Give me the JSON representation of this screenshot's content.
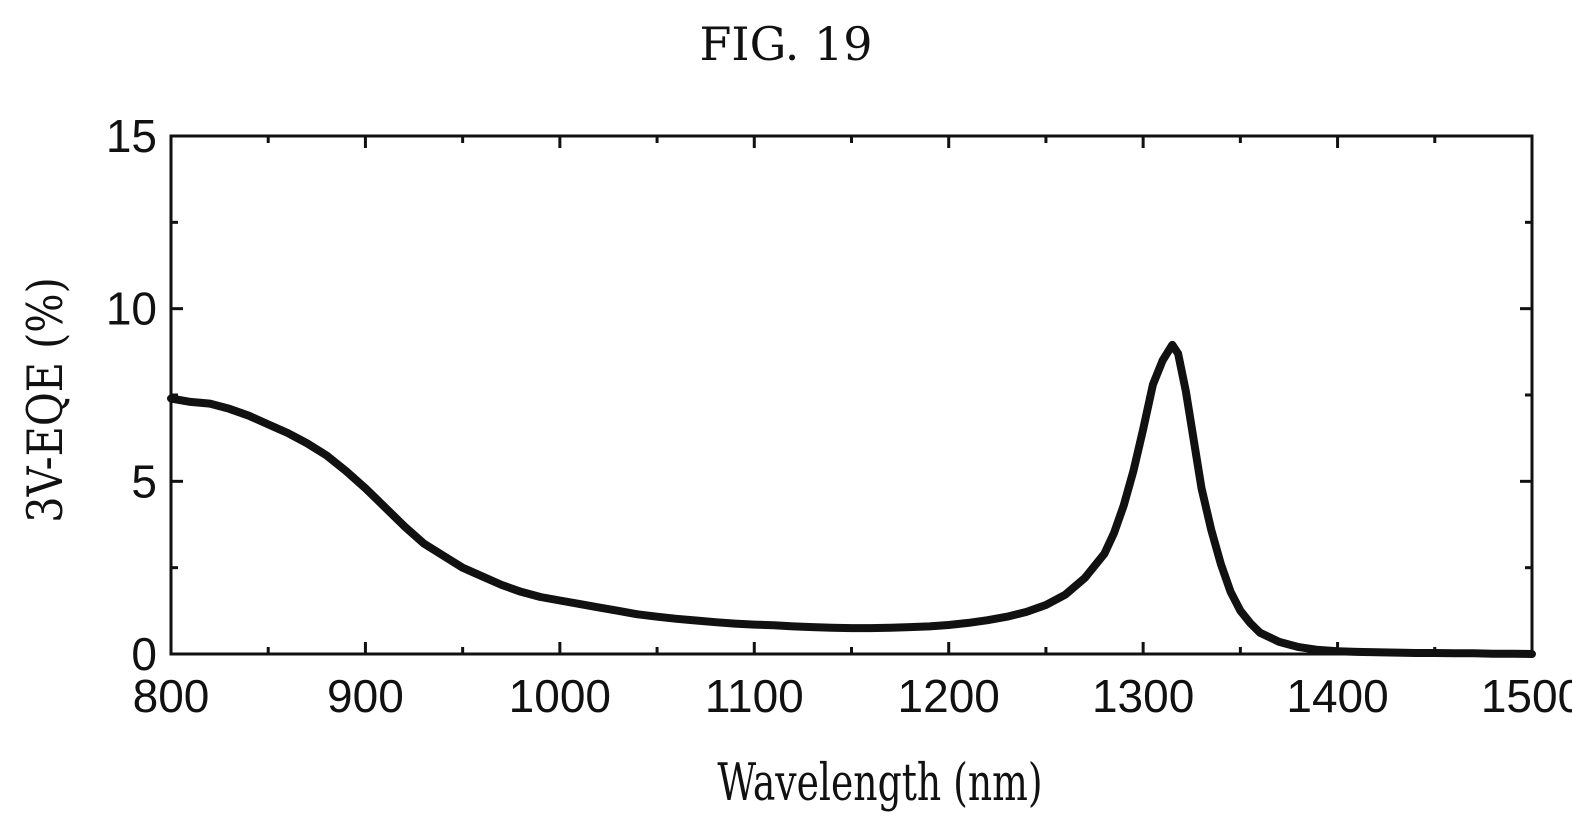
{
  "figure": {
    "title": "FIG. 19"
  },
  "chart_data": {
    "type": "line",
    "title": "",
    "xlabel": "Wavelength (nm)",
    "ylabel": "3V-EQE (%)",
    "xlim": [
      800,
      1500
    ],
    "ylim": [
      0,
      15
    ],
    "x_ticks": [
      800,
      900,
      1000,
      1100,
      1200,
      1300,
      1400,
      1500
    ],
    "y_ticks": [
      0,
      5,
      10,
      15
    ],
    "grid": false,
    "legend": "none",
    "line_color": "#111111",
    "series": [
      {
        "x": [
          800,
          810,
          820,
          830,
          840,
          850,
          860,
          870,
          880,
          890,
          900,
          910,
          920,
          930,
          940,
          950,
          960,
          970,
          980,
          990,
          1000,
          1010,
          1020,
          1030,
          1040,
          1050,
          1060,
          1070,
          1080,
          1090,
          1100,
          1110,
          1120,
          1130,
          1140,
          1150,
          1160,
          1170,
          1180,
          1190,
          1200,
          1210,
          1220,
          1230,
          1240,
          1250,
          1260,
          1270,
          1280,
          1285,
          1290,
          1295,
          1300,
          1305,
          1310,
          1315,
          1318,
          1322,
          1326,
          1330,
          1335,
          1340,
          1345,
          1350,
          1355,
          1360,
          1370,
          1380,
          1390,
          1400,
          1410,
          1420,
          1430,
          1440,
          1450,
          1460,
          1470,
          1480,
          1490,
          1500
        ],
        "values": [
          7.4,
          7.3,
          7.25,
          7.1,
          6.9,
          6.65,
          6.4,
          6.1,
          5.75,
          5.3,
          4.8,
          4.25,
          3.7,
          3.2,
          2.85,
          2.5,
          2.25,
          2.0,
          1.8,
          1.65,
          1.55,
          1.45,
          1.35,
          1.25,
          1.15,
          1.08,
          1.02,
          0.97,
          0.92,
          0.88,
          0.85,
          0.83,
          0.8,
          0.78,
          0.76,
          0.75,
          0.75,
          0.76,
          0.78,
          0.8,
          0.84,
          0.9,
          0.98,
          1.08,
          1.22,
          1.42,
          1.72,
          2.2,
          2.9,
          3.5,
          4.3,
          5.3,
          6.5,
          7.8,
          8.5,
          8.95,
          8.7,
          7.6,
          6.2,
          4.8,
          3.6,
          2.6,
          1.8,
          1.25,
          0.9,
          0.62,
          0.35,
          0.2,
          0.12,
          0.08,
          0.06,
          0.05,
          0.04,
          0.03,
          0.03,
          0.02,
          0.02,
          0.01,
          0.01,
          0.0
        ]
      }
    ]
  }
}
